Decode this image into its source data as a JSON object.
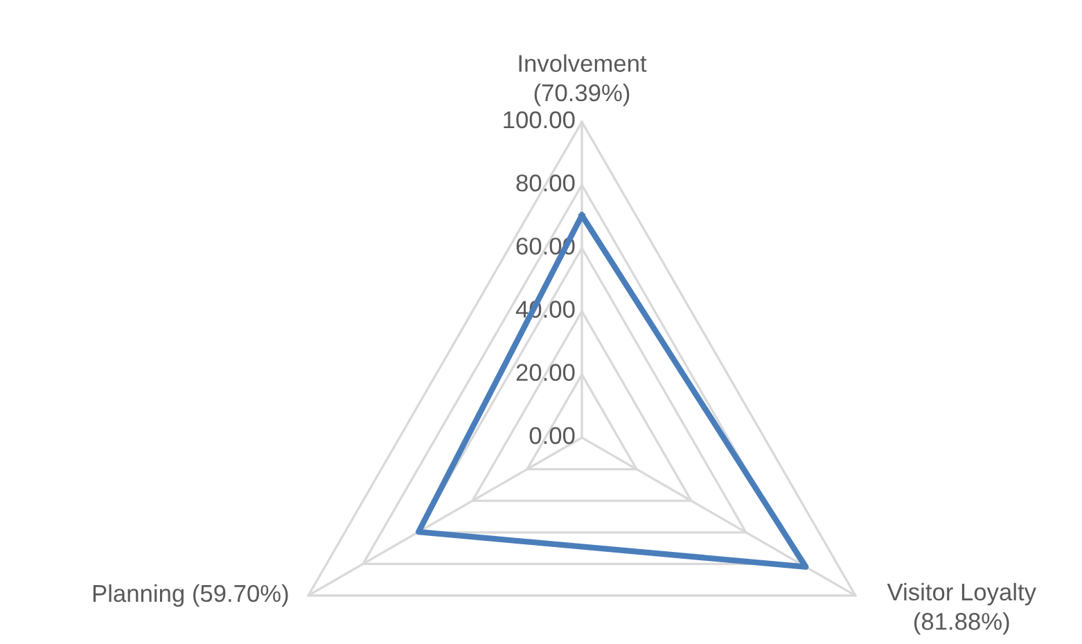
{
  "chart_data": {
    "type": "radar",
    "categories": [
      "Involvement\n(70.39%)",
      "Visitor Loyalty\n(81.88%)",
      "Planning (59.70%)"
    ],
    "series": [
      {
        "color": "#4a7ebb",
        "values": [
          70.39,
          81.88,
          59.7
        ]
      }
    ],
    "ylim": [
      0,
      100
    ],
    "yticks": [
      {
        "value": 0,
        "label": "0.00"
      },
      {
        "value": 20,
        "label": "20.00"
      },
      {
        "value": 40,
        "label": "40.00"
      },
      {
        "value": 60,
        "label": "60.00"
      },
      {
        "value": 80,
        "label": "80.00"
      },
      {
        "value": 100,
        "label": "100.00"
      }
    ],
    "grid": true,
    "legend": false
  }
}
